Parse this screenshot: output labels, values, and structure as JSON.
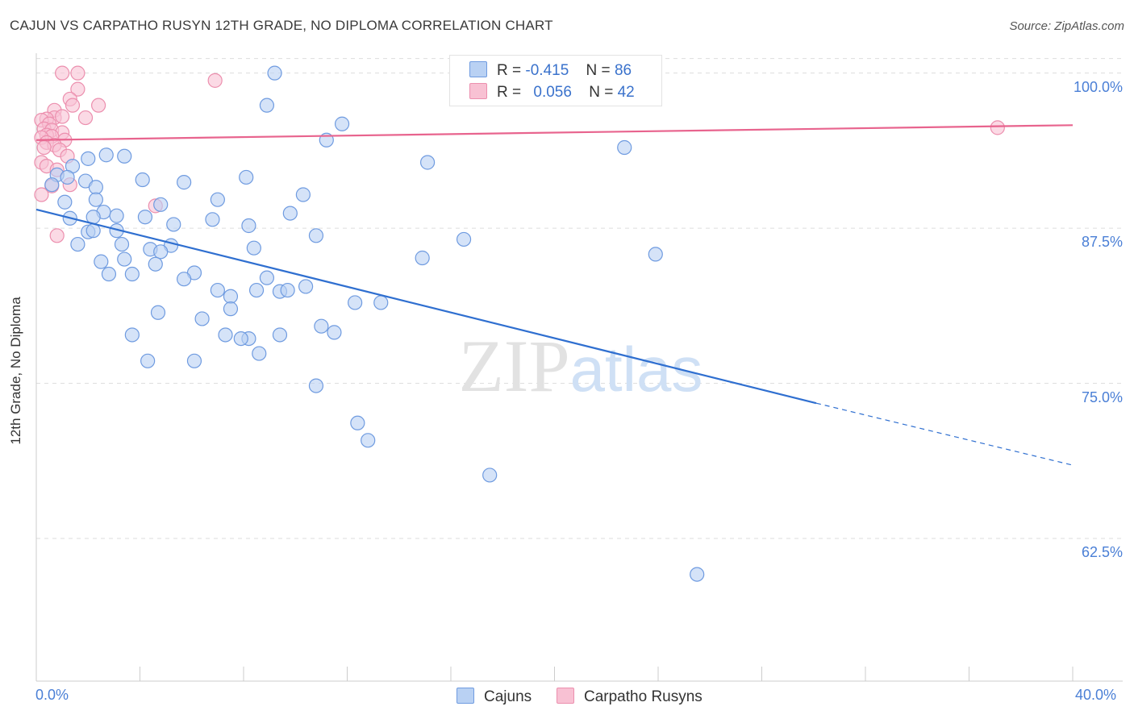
{
  "chart_data": {
    "type": "scatter",
    "title": "CAJUN VS CARPATHO RUSYN 12TH GRADE, NO DIPLOMA CORRELATION CHART",
    "source": "Source: ZipAtlas.com",
    "xlabel": "",
    "ylabel": "12th Grade, No Diploma",
    "xlim": [
      0,
      40
    ],
    "ylim": [
      51.0,
      101.6
    ],
    "x_tick_labels": [
      "0.0%",
      "40.0%"
    ],
    "y_ticks": [
      62.5,
      75.0,
      87.5,
      100.0
    ],
    "y_tick_labels": [
      "62.5%",
      "75.0%",
      "87.5%",
      "100.0%"
    ],
    "grid": true,
    "legend_position": "top-center",
    "watermark": "ZIPatlas",
    "colors": {
      "cajuns_fill": "#b9d1f3",
      "cajuns_stroke": "#6f9be0",
      "cajuns_line": "#2f6fd0",
      "rusyn_fill": "#f8c1d3",
      "rusyn_stroke": "#ec8fae",
      "rusyn_line": "#e8648e",
      "grid": "#dddddd",
      "axis_text": "#4a7fd6"
    },
    "legend_stats": [
      {
        "r_label": "R =",
        "r_value": "-0.415",
        "n_label": "N =",
        "n_value": "86"
      },
      {
        "r_label": "R =",
        "r_value": "0.056",
        "n_label": "N =",
        "n_value": "42"
      }
    ],
    "series": [
      {
        "name": "Cajuns",
        "trend": {
          "x_solid": [
            0.0,
            30.1
          ],
          "y_solid": [
            89.0,
            73.4
          ],
          "x_dashed": [
            30.1,
            40.0
          ],
          "y_dashed": [
            73.4,
            68.4
          ]
        },
        "points": [
          [
            9.2,
            100.0
          ],
          [
            8.9,
            97.4
          ],
          [
            11.8,
            95.9
          ],
          [
            11.2,
            94.6
          ],
          [
            22.7,
            94.0
          ],
          [
            2.7,
            93.4
          ],
          [
            3.4,
            93.3
          ],
          [
            2.0,
            93.1
          ],
          [
            15.1,
            92.8
          ],
          [
            1.4,
            92.5
          ],
          [
            0.8,
            91.8
          ],
          [
            4.1,
            91.4
          ],
          [
            8.1,
            91.6
          ],
          [
            5.7,
            91.2
          ],
          [
            1.9,
            91.3
          ],
          [
            2.3,
            90.8
          ],
          [
            10.3,
            90.2
          ],
          [
            1.2,
            91.6
          ],
          [
            0.6,
            91.0
          ],
          [
            7.0,
            89.8
          ],
          [
            2.3,
            89.8
          ],
          [
            1.1,
            89.6
          ],
          [
            4.8,
            89.4
          ],
          [
            9.8,
            88.7
          ],
          [
            2.6,
            88.8
          ],
          [
            4.2,
            88.4
          ],
          [
            1.3,
            88.3
          ],
          [
            2.2,
            88.4
          ],
          [
            6.8,
            88.2
          ],
          [
            3.1,
            88.5
          ],
          [
            5.3,
            87.8
          ],
          [
            8.2,
            87.7
          ],
          [
            3.1,
            87.3
          ],
          [
            2.0,
            87.2
          ],
          [
            2.2,
            87.3
          ],
          [
            10.8,
            86.9
          ],
          [
            16.5,
            86.6
          ],
          [
            1.6,
            86.2
          ],
          [
            3.3,
            86.2
          ],
          [
            5.2,
            86.1
          ],
          [
            4.4,
            85.8
          ],
          [
            8.4,
            85.9
          ],
          [
            4.8,
            85.6
          ],
          [
            14.9,
            85.1
          ],
          [
            23.9,
            85.4
          ],
          [
            2.5,
            84.8
          ],
          [
            3.4,
            85.0
          ],
          [
            4.6,
            84.6
          ],
          [
            2.8,
            83.8
          ],
          [
            3.7,
            83.8
          ],
          [
            6.1,
            83.9
          ],
          [
            5.7,
            83.4
          ],
          [
            8.9,
            83.5
          ],
          [
            10.4,
            82.8
          ],
          [
            7.0,
            82.5
          ],
          [
            8.5,
            82.5
          ],
          [
            9.4,
            82.4
          ],
          [
            9.7,
            82.5
          ],
          [
            7.5,
            82.0
          ],
          [
            12.3,
            81.5
          ],
          [
            13.3,
            81.5
          ],
          [
            7.5,
            81.0
          ],
          [
            4.7,
            80.7
          ],
          [
            6.4,
            80.2
          ],
          [
            11.0,
            79.6
          ],
          [
            3.7,
            78.9
          ],
          [
            7.3,
            78.9
          ],
          [
            9.4,
            78.9
          ],
          [
            11.5,
            79.1
          ],
          [
            8.2,
            78.6
          ],
          [
            7.9,
            78.6
          ],
          [
            8.6,
            77.4
          ],
          [
            4.3,
            76.8
          ],
          [
            6.1,
            76.8
          ],
          [
            10.8,
            74.8
          ],
          [
            12.4,
            71.8
          ],
          [
            12.8,
            70.4
          ],
          [
            17.5,
            67.6
          ],
          [
            25.5,
            59.6
          ]
        ]
      },
      {
        "name": "Carpatho Rusyns",
        "trend": {
          "x_solid": [
            0.0,
            40.0
          ],
          "y_solid": [
            94.6,
            95.8
          ]
        },
        "points": [
          [
            1.0,
            100.0
          ],
          [
            1.6,
            100.0
          ],
          [
            6.9,
            99.4
          ],
          [
            1.6,
            98.7
          ],
          [
            1.3,
            97.9
          ],
          [
            1.4,
            97.4
          ],
          [
            2.4,
            97.4
          ],
          [
            0.7,
            97.0
          ],
          [
            0.7,
            96.4
          ],
          [
            1.0,
            96.5
          ],
          [
            0.4,
            96.3
          ],
          [
            1.9,
            96.4
          ],
          [
            0.2,
            96.2
          ],
          [
            0.5,
            95.9
          ],
          [
            0.3,
            95.5
          ],
          [
            0.6,
            95.4
          ],
          [
            1.0,
            95.2
          ],
          [
            0.4,
            95.0
          ],
          [
            0.6,
            94.9
          ],
          [
            1.1,
            94.6
          ],
          [
            0.2,
            94.8
          ],
          [
            0.4,
            94.4
          ],
          [
            0.7,
            94.2
          ],
          [
            0.3,
            94.0
          ],
          [
            0.9,
            93.8
          ],
          [
            1.2,
            93.3
          ],
          [
            0.2,
            92.8
          ],
          [
            0.4,
            92.5
          ],
          [
            0.8,
            92.2
          ],
          [
            1.3,
            91.0
          ],
          [
            0.6,
            90.9
          ],
          [
            0.2,
            90.2
          ],
          [
            4.6,
            89.3
          ],
          [
            0.8,
            86.9
          ],
          [
            37.1,
            95.6
          ]
        ]
      }
    ]
  }
}
